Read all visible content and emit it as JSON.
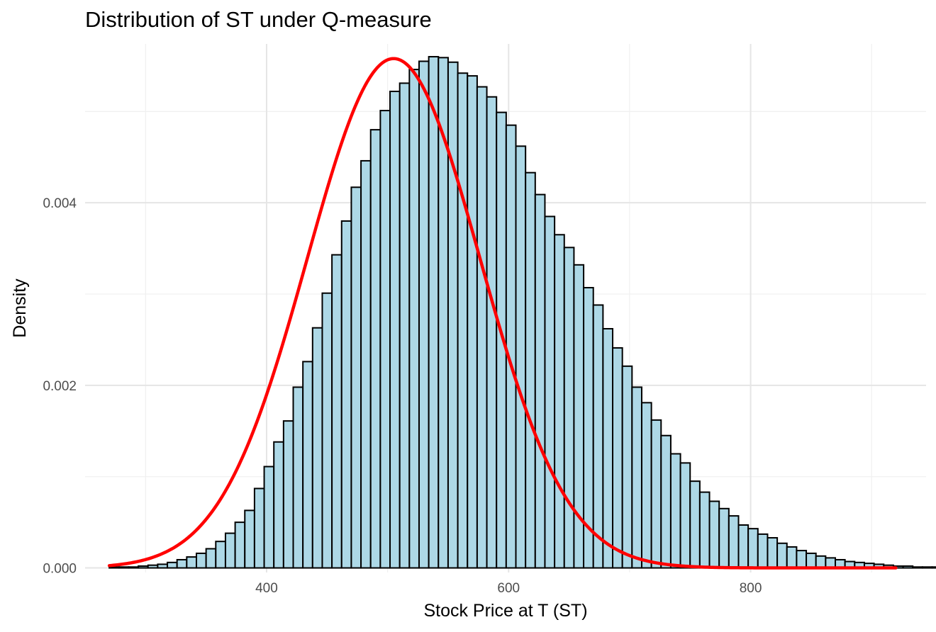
{
  "chart_data": {
    "type": "histogram",
    "title": "Distribution of ST under Q-measure",
    "xlabel": "Stock Price at T (ST)",
    "ylabel": "Density",
    "xlim": [
      250,
      945
    ],
    "ylim": [
      -5e-05,
      0.00574
    ],
    "x_ticks": [
      400,
      600,
      800
    ],
    "x_minor_ticks": [
      300,
      500,
      700,
      900
    ],
    "y_ticks": [
      0.0,
      0.002,
      0.004
    ],
    "y_tick_labels": [
      "0.000",
      "0.002",
      "0.004"
    ],
    "y_minor_ticks": [
      0.001,
      0.003,
      0.005
    ],
    "grid": true,
    "histogram": {
      "color": "#add8e6",
      "edge_color": "#000000",
      "bin_width": 8,
      "bin_start": 270,
      "values": [
        1e-05,
        1e-05,
        1e-05,
        2e-05,
        3e-05,
        4e-05,
        6e-05,
        9e-05,
        0.00012,
        0.00016,
        0.00021,
        0.00029,
        0.00038,
        0.0005,
        0.00063,
        0.00087,
        0.00111,
        0.00138,
        0.00161,
        0.00198,
        0.00226,
        0.00263,
        0.00301,
        0.00343,
        0.0038,
        0.00417,
        0.00446,
        0.0048,
        0.00501,
        0.00522,
        0.00531,
        0.00546,
        0.00555,
        0.0056,
        0.00559,
        0.00554,
        0.00542,
        0.00539,
        0.00527,
        0.00516,
        0.00499,
        0.00485,
        0.00462,
        0.00433,
        0.00409,
        0.00385,
        0.00365,
        0.00351,
        0.00332,
        0.00307,
        0.00288,
        0.00262,
        0.00241,
        0.00221,
        0.00198,
        0.00181,
        0.00162,
        0.00145,
        0.00125,
        0.00115,
        0.00095,
        0.00083,
        0.00073,
        0.00065,
        0.00057,
        0.00047,
        0.00043,
        0.00037,
        0.00033,
        0.00027,
        0.00023,
        0.00019,
        0.00016,
        0.00013,
        0.00011,
        9e-05,
        7e-05,
        6e-05,
        5e-05,
        4e-05,
        3e-05,
        2e-05,
        2e-05,
        1e-05,
        1e-05,
        1e-05,
        1e-05,
        1e-05,
        1e-05,
        1e-05,
        0.0,
        0.0,
        0.0,
        0.0,
        0.0,
        0.0,
        0.0,
        0.0,
        0.0,
        0.0,
        0.0,
        0.0,
        0.0,
        0.0,
        0.0,
        0.0,
        0.0,
        0.0,
        0.0,
        0.0,
        0.0,
        0.0,
        0.0,
        0.0,
        0.0,
        0.0,
        0.0,
        0.0,
        0.0,
        0.0,
        0.0,
        0.0,
        0.0,
        0.0,
        0.0
      ]
    },
    "density_curve": {
      "color": "#ff0000",
      "type": "normal",
      "mean": 505,
      "sd": 71.5,
      "x_range": [
        270,
        920
      ]
    }
  }
}
